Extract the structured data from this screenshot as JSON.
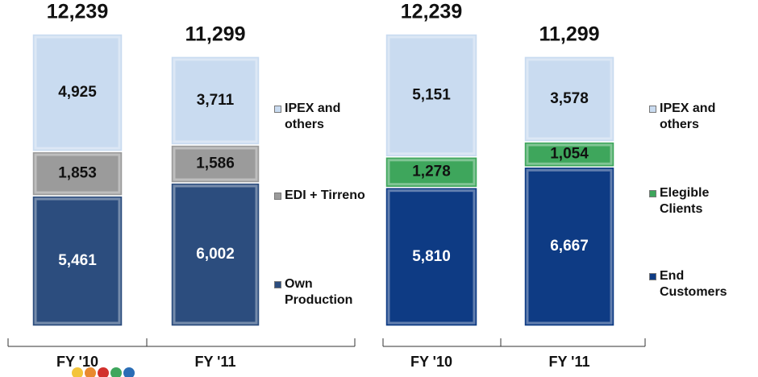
{
  "chart_data": [
    {
      "type": "bar",
      "stacked": true,
      "categories": [
        "FY '10",
        "FY '11"
      ],
      "series": [
        {
          "name": "Own Production",
          "color": "#2c4d7e",
          "values": [
            5461,
            6002
          ],
          "value_labels": [
            "5,461",
            "6,002"
          ]
        },
        {
          "name": "EDI + Tirreno",
          "color": "#9b9b9b",
          "values": [
            1853,
            1586
          ],
          "value_labels": [
            "1,853",
            "1,586"
          ]
        },
        {
          "name": "IPEX and others",
          "color": "#c9dbf0",
          "values": [
            4925,
            3711
          ],
          "value_labels": [
            "4,925",
            "3,711"
          ]
        }
      ],
      "totals": {
        "values": [
          12239,
          11299
        ],
        "value_labels": [
          "12,239",
          "11,299"
        ]
      },
      "legend": "right"
    },
    {
      "type": "bar",
      "stacked": true,
      "categories": [
        "FY '10",
        "FY '11"
      ],
      "series": [
        {
          "name": "End Customers",
          "color": "#0e3b84",
          "values": [
            5810,
            6667
          ],
          "value_labels": [
            "5,810",
            "6,667"
          ]
        },
        {
          "name": "Elegible Clients",
          "color": "#3ea65c",
          "values": [
            1278,
            1054
          ],
          "value_labels": [
            "1,278",
            "1,054"
          ]
        },
        {
          "name": "IPEX and others",
          "color": "#c9dbf0",
          "values": [
            5151,
            3578
          ],
          "value_labels": [
            "5,151",
            "3,578"
          ]
        }
      ],
      "totals": {
        "values": [
          12239,
          11299
        ],
        "value_labels": [
          "12,239",
          "11,299"
        ]
      },
      "legend": "right"
    }
  ]
}
